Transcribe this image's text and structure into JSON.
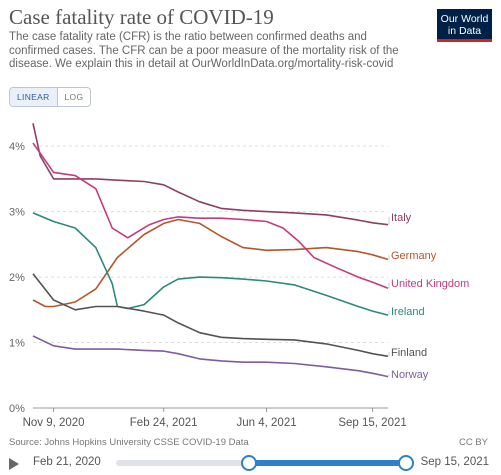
{
  "header": {
    "title": "Case fatality rate of COVID-19",
    "subtitle": "The case fatality rate (CFR) is the ratio between confirmed deaths and confirmed cases. The CFR can be a poor measure of the mortality risk of the disease. We explain this in detail at OurWorldInData.org/mortality-risk-covid",
    "logo_line1": "Our World",
    "logo_line2": "in Data"
  },
  "scale_toggle": {
    "linear": "LINEAR",
    "log": "LOG",
    "selected": "LINEAR"
  },
  "footer": {
    "source": "Source: Johns Hopkins University CSSE COVID-19 Data",
    "license": "CC BY"
  },
  "timeline": {
    "start": "Feb 21, 2020",
    "end": "Sep 15, 2021"
  },
  "colors": {
    "accent": "#2f80c8",
    "grid": "#dddddd"
  },
  "chart_data": {
    "type": "line",
    "y_format": "percent",
    "ylim": [
      0,
      4.4
    ],
    "yticks": [
      0,
      1,
      2,
      3,
      4
    ],
    "ytick_labels": [
      "0%",
      "1%",
      "2%",
      "3%",
      "4%"
    ],
    "xlim": [
      "2020-10-20",
      "2021-09-30"
    ],
    "xticks": [
      "2020-11-09",
      "2021-02-24",
      "2021-06-04",
      "2021-09-15"
    ],
    "xtick_labels": [
      "Nov 9, 2020",
      "Feb 24, 2021",
      "Jun 4, 2021",
      "Sep 15, 2021"
    ],
    "grid": true,
    "legend": "inline-right",
    "series": [
      {
        "name": "Italy",
        "color": "#8c3f62",
        "x": [
          "2020-10-20",
          "2020-10-27",
          "2020-11-09",
          "2020-11-30",
          "2020-12-20",
          "2021-01-10",
          "2021-02-05",
          "2021-02-24",
          "2021-03-10",
          "2021-03-31",
          "2021-04-21",
          "2021-05-12",
          "2021-06-04",
          "2021-07-01",
          "2021-08-01",
          "2021-09-01",
          "2021-09-15",
          "2021-09-30"
        ],
        "y": [
          4.35,
          3.85,
          3.5,
          3.5,
          3.5,
          3.48,
          3.46,
          3.41,
          3.3,
          3.15,
          3.05,
          3.02,
          3.0,
          2.98,
          2.95,
          2.87,
          2.83,
          2.8
        ]
      },
      {
        "name": "Germany",
        "color": "#b4562a",
        "x": [
          "2020-10-20",
          "2020-11-01",
          "2020-11-09",
          "2020-11-30",
          "2020-12-20",
          "2021-01-10",
          "2021-02-05",
          "2021-02-24",
          "2021-03-10",
          "2021-03-31",
          "2021-04-21",
          "2021-05-12",
          "2021-06-04",
          "2021-07-01",
          "2021-08-01",
          "2021-09-01",
          "2021-09-15",
          "2021-09-30"
        ],
        "y": [
          1.65,
          1.55,
          1.55,
          1.62,
          1.82,
          2.3,
          2.65,
          2.82,
          2.88,
          2.82,
          2.62,
          2.45,
          2.41,
          2.42,
          2.45,
          2.39,
          2.34,
          2.27
        ]
      },
      {
        "name": "United Kingdom",
        "color": "#c63a7c",
        "x": [
          "2020-10-20",
          "2020-11-09",
          "2020-11-30",
          "2020-12-20",
          "2021-01-05",
          "2021-01-20",
          "2021-02-10",
          "2021-02-24",
          "2021-03-10",
          "2021-03-31",
          "2021-04-21",
          "2021-05-12",
          "2021-06-04",
          "2021-06-20",
          "2021-07-05",
          "2021-07-20",
          "2021-08-10",
          "2021-09-01",
          "2021-09-15",
          "2021-09-30"
        ],
        "y": [
          4.05,
          3.6,
          3.55,
          3.35,
          2.75,
          2.6,
          2.8,
          2.88,
          2.92,
          2.9,
          2.9,
          2.88,
          2.85,
          2.75,
          2.55,
          2.3,
          2.15,
          2.0,
          1.92,
          1.83
        ]
      },
      {
        "name": "Ireland",
        "color": "#2a8a7c",
        "x": [
          "2020-10-20",
          "2020-11-09",
          "2020-11-30",
          "2020-12-20",
          "2021-01-05",
          "2021-01-10",
          "2021-01-20",
          "2021-02-05",
          "2021-02-24",
          "2021-03-10",
          "2021-03-31",
          "2021-04-21",
          "2021-05-12",
          "2021-06-04",
          "2021-07-01",
          "2021-08-01",
          "2021-09-01",
          "2021-09-15",
          "2021-09-30"
        ],
        "y": [
          2.98,
          2.85,
          2.75,
          2.45,
          1.9,
          1.55,
          1.52,
          1.58,
          1.85,
          1.97,
          2.0,
          1.99,
          1.97,
          1.94,
          1.88,
          1.72,
          1.55,
          1.48,
          1.42
        ]
      },
      {
        "name": "Finland",
        "color": "#535353",
        "x": [
          "2020-10-20",
          "2020-11-09",
          "2020-11-30",
          "2020-12-20",
          "2021-01-10",
          "2021-02-05",
          "2021-02-24",
          "2021-03-10",
          "2021-03-31",
          "2021-04-21",
          "2021-05-12",
          "2021-06-04",
          "2021-07-01",
          "2021-08-01",
          "2021-09-01",
          "2021-09-15",
          "2021-09-30"
        ],
        "y": [
          2.05,
          1.65,
          1.5,
          1.55,
          1.55,
          1.48,
          1.42,
          1.3,
          1.15,
          1.08,
          1.06,
          1.05,
          1.04,
          0.98,
          0.88,
          0.83,
          0.79
        ]
      },
      {
        "name": "Norway",
        "color": "#7e5ba3",
        "x": [
          "2020-10-20",
          "2020-11-09",
          "2020-11-30",
          "2020-12-20",
          "2021-01-10",
          "2021-02-05",
          "2021-02-24",
          "2021-03-10",
          "2021-03-31",
          "2021-04-21",
          "2021-05-12",
          "2021-06-04",
          "2021-07-01",
          "2021-08-01",
          "2021-09-01",
          "2021-09-15",
          "2021-09-30"
        ],
        "y": [
          1.1,
          0.95,
          0.9,
          0.9,
          0.9,
          0.88,
          0.87,
          0.83,
          0.75,
          0.72,
          0.7,
          0.7,
          0.68,
          0.63,
          0.57,
          0.53,
          0.48
        ]
      }
    ]
  }
}
